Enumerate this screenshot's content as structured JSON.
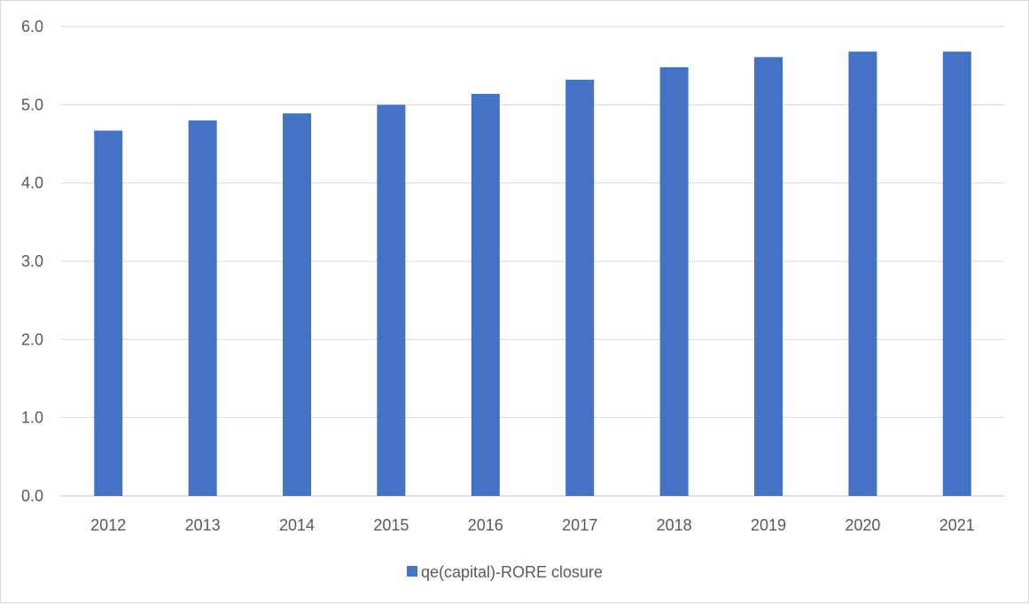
{
  "chart_data": {
    "type": "bar",
    "categories": [
      "2012",
      "2013",
      "2014",
      "2015",
      "2016",
      "2017",
      "2018",
      "2019",
      "2020",
      "2021"
    ],
    "series": [
      {
        "name": "qe(capital)-RORE closure",
        "values": [
          4.67,
          4.8,
          4.89,
          5.0,
          5.14,
          5.32,
          5.48,
          5.61,
          5.68,
          5.68
        ],
        "color": "#4472c4"
      }
    ],
    "title": "",
    "xlabel": "",
    "ylabel": "",
    "ylim": [
      0,
      6
    ],
    "yticks": [
      "0.0",
      "1.0",
      "2.0",
      "3.0",
      "4.0",
      "5.0",
      "6.0"
    ],
    "grid": true,
    "legend_position": "bottom",
    "gridline_color": "#d9d9d9",
    "axis_color": "#bfbfbf"
  }
}
